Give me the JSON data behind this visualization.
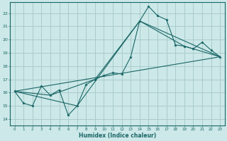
{
  "xlabel": "Humidex (Indice chaleur)",
  "ylabel": "",
  "bg_color": "#cce8e8",
  "grid_color": "#aacccc",
  "line_color": "#1a6666",
  "xlim": [
    -0.5,
    23.5
  ],
  "ylim": [
    13.5,
    22.8
  ],
  "xticks": [
    0,
    1,
    2,
    3,
    4,
    5,
    6,
    7,
    8,
    9,
    10,
    11,
    12,
    13,
    14,
    15,
    16,
    17,
    18,
    19,
    20,
    21,
    22,
    23
  ],
  "yticks": [
    14,
    15,
    16,
    17,
    18,
    19,
    20,
    21,
    22
  ],
  "series": [
    {
      "x": [
        0,
        1,
        2,
        3,
        4,
        5,
        6,
        7,
        8,
        9,
        10,
        11,
        12,
        13,
        14,
        15,
        16,
        17,
        18,
        19,
        20,
        21,
        22,
        23
      ],
      "y": [
        16.1,
        15.2,
        15.0,
        16.5,
        15.8,
        16.2,
        14.3,
        15.0,
        16.6,
        17.0,
        17.3,
        17.5,
        17.4,
        18.7,
        21.4,
        22.5,
        21.8,
        21.5,
        19.6,
        19.5,
        19.3,
        19.8,
        19.2,
        18.7
      ],
      "marker": true
    },
    {
      "x": [
        0,
        23
      ],
      "y": [
        16.1,
        18.7
      ],
      "marker": false
    },
    {
      "x": [
        0,
        7,
        14,
        23
      ],
      "y": [
        16.1,
        15.0,
        21.4,
        18.7
      ],
      "marker": false
    },
    {
      "x": [
        0,
        4,
        9,
        14,
        19,
        23
      ],
      "y": [
        16.1,
        15.8,
        17.0,
        21.4,
        19.5,
        18.7
      ],
      "marker": false
    }
  ]
}
